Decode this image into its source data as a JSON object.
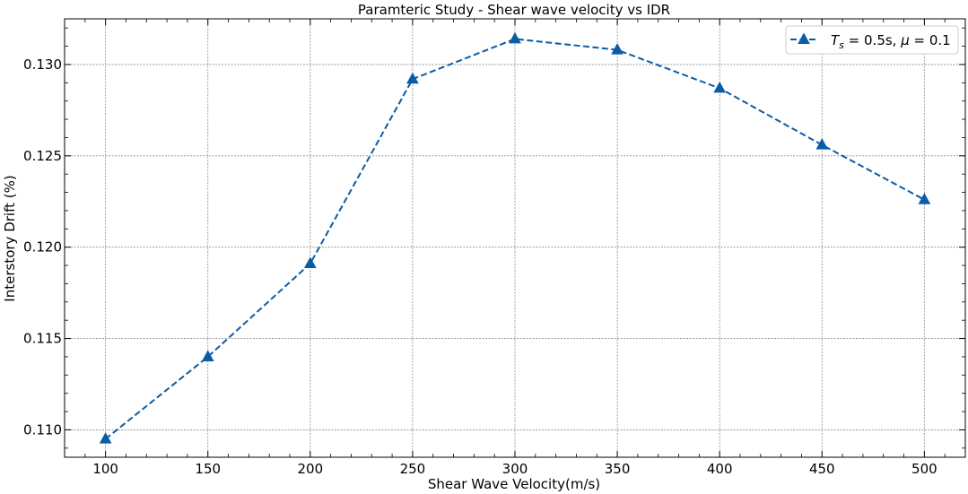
{
  "chart_data": {
    "type": "line",
    "title": "Paramteric Study - Shear wave velocity vs IDR",
    "xlabel": "Shear Wave Velocity(m/s)",
    "ylabel": "Interstory Drift (%)",
    "x": [
      100,
      150,
      200,
      250,
      300,
      350,
      400,
      450,
      500
    ],
    "series": [
      {
        "name": "T_s = 0.5s, μ = 0.1",
        "name_parts": {
          "sym1": "T",
          "sub1": "s",
          "mid": " = 0.5s, ",
          "sym2": "μ",
          "tail": " = 0.1"
        },
        "values": [
          0.1095,
          0.114,
          0.1191,
          0.1292,
          0.1314,
          0.1308,
          0.1287,
          0.1256,
          0.1226
        ],
        "color": "#0a5ca6",
        "line_style": "dashed",
        "marker": "triangle-up"
      }
    ],
    "xlim": [
      80,
      520
    ],
    "ylim": [
      0.1085,
      0.1325
    ],
    "x_ticks": [
      100,
      150,
      200,
      250,
      300,
      350,
      400,
      450,
      500
    ],
    "y_ticks": [
      "0.110",
      "0.115",
      "0.120",
      "0.125",
      "0.130"
    ],
    "y_tick_values": [
      0.11,
      0.115,
      0.12,
      0.125,
      0.13
    ],
    "grid": true,
    "legend_position": "top-right"
  }
}
